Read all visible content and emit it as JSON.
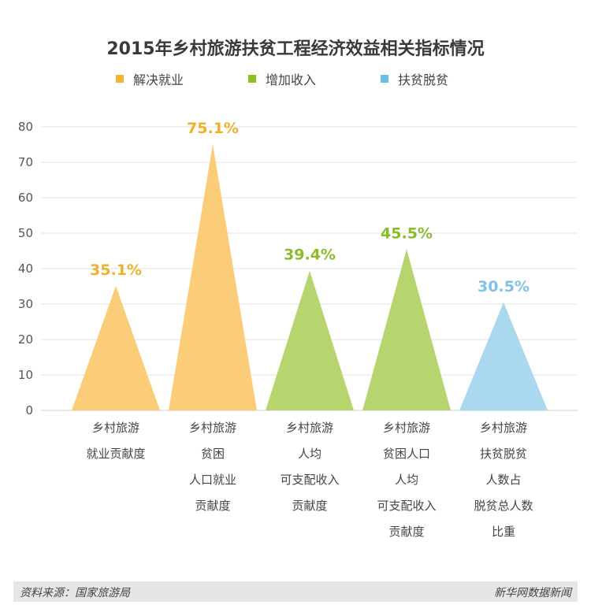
{
  "chart_data": {
    "type": "bar",
    "title": "2015年乡村旅游扶贫工程经济效益相关指标情况",
    "ylim": [
      0,
      80
    ],
    "yticks": [
      0,
      10,
      20,
      30,
      40,
      50,
      60,
      70,
      80
    ],
    "legend": [
      {
        "name": "解决就业",
        "color": "#fbcd79"
      },
      {
        "name": "增加收入",
        "color": "#b6d56f"
      },
      {
        "name": "扶贫脱贫",
        "color": "#a9d8ef"
      }
    ],
    "categories": [
      {
        "lines": [
          "乡村旅游",
          "就业贡献度"
        ],
        "group": 0
      },
      {
        "lines": [
          "乡村旅游",
          "贫困",
          "人口就业",
          "贡献度"
        ],
        "group": 0
      },
      {
        "lines": [
          "乡村旅游",
          "人均",
          "可支配收入",
          "贡献度"
        ],
        "group": 1
      },
      {
        "lines": [
          "乡村旅游",
          "贫困人口",
          "人均",
          "可支配收入",
          "贡献度"
        ],
        "group": 1
      },
      {
        "lines": [
          "乡村旅游",
          "扶贫脱贫",
          "人数占",
          "脱贫总人数",
          "比重"
        ],
        "group": 2
      }
    ],
    "values": [
      35.1,
      75.1,
      39.4,
      45.5,
      30.5
    ],
    "data_labels": [
      "35.1%",
      "75.1%",
      "39.4%",
      "45.5%",
      "30.5%"
    ],
    "label_colors": [
      "#f0b02c",
      "#f0b02c",
      "#8cbb2a",
      "#8cbb2a",
      "#7cc3e6"
    ],
    "grid": true
  },
  "footer": {
    "source": "资料来源：国家旅游局",
    "brand": "新华网数据新闻"
  }
}
